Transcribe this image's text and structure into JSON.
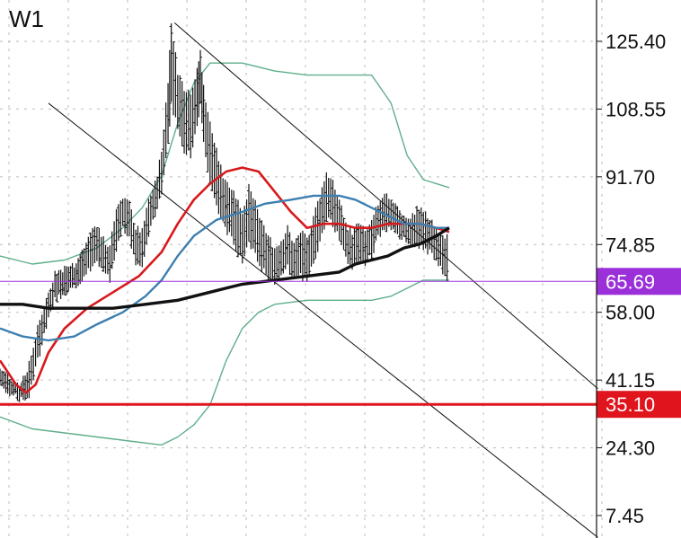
{
  "timeframe": "W1",
  "chart_data": {
    "type": "ohlc",
    "grid": true,
    "ylim": [
      0,
      132
    ],
    "xlim": [
      0,
      150
    ],
    "y_ticks": [
      "125.40",
      "108.55",
      "91.70",
      "74.85",
      "58.00",
      "41.15",
      "24.30",
      "7.45"
    ],
    "y_tick_values": [
      125.4,
      108.55,
      91.7,
      74.85,
      58.0,
      41.15,
      24.3,
      7.45
    ],
    "price_lines": [
      {
        "label": "65.69",
        "value": 65.69,
        "color": "#9b30d9",
        "width": 1
      },
      {
        "label": "35.10",
        "value": 35.1,
        "color": "#e0141c",
        "width": 3
      }
    ],
    "colors": {
      "bars": "#111111",
      "grid": "#bdbdbd",
      "channel": "#111111",
      "ma_red": "#d7191c",
      "ma_blue": "#3c7fb0",
      "ma_black": "#111111",
      "bands": "#5fae8a"
    },
    "series": [
      {
        "type": "ohlc_envelope",
        "points": [
          [
            0,
            44,
            40
          ],
          [
            3,
            42,
            38
          ],
          [
            6,
            40,
            36
          ],
          [
            9,
            45,
            37
          ],
          [
            11,
            52,
            44
          ],
          [
            13,
            58,
            50
          ],
          [
            15,
            63,
            56
          ],
          [
            17,
            68,
            61
          ],
          [
            20,
            69,
            63
          ],
          [
            23,
            70,
            64
          ],
          [
            26,
            74,
            66
          ],
          [
            28,
            78,
            69
          ],
          [
            30,
            80,
            71
          ],
          [
            32,
            76,
            68
          ],
          [
            34,
            74,
            66
          ],
          [
            36,
            84,
            74
          ],
          [
            38,
            87,
            79
          ],
          [
            40,
            85,
            76
          ],
          [
            42,
            79,
            70
          ],
          [
            44,
            78,
            69
          ],
          [
            46,
            86,
            77
          ],
          [
            48,
            90,
            82
          ],
          [
            50,
            98,
            88
          ],
          [
            52,
            116,
            100
          ],
          [
            53,
            130,
            110
          ],
          [
            55,
            118,
            104
          ],
          [
            57,
            114,
            98
          ],
          [
            59,
            113,
            97
          ],
          [
            61,
            118,
            104
          ],
          [
            62,
            123,
            110
          ],
          [
            63,
            114,
            100
          ],
          [
            65,
            105,
            90
          ],
          [
            67,
            98,
            84
          ],
          [
            69,
            92,
            80
          ],
          [
            71,
            90,
            77
          ],
          [
            73,
            87,
            74
          ],
          [
            75,
            83,
            70
          ],
          [
            77,
            89,
            76
          ],
          [
            79,
            85,
            72
          ],
          [
            81,
            80,
            69
          ],
          [
            83,
            77,
            66
          ],
          [
            85,
            74,
            65
          ],
          [
            87,
            76,
            68
          ],
          [
            89,
            79,
            69
          ],
          [
            91,
            75,
            66
          ],
          [
            93,
            78,
            67
          ],
          [
            95,
            76,
            66
          ],
          [
            97,
            82,
            70
          ],
          [
            99,
            87,
            76
          ],
          [
            101,
            93,
            81
          ],
          [
            103,
            90,
            80
          ],
          [
            105,
            86,
            76
          ],
          [
            107,
            80,
            71
          ],
          [
            109,
            78,
            69
          ],
          [
            111,
            80,
            71
          ],
          [
            113,
            78,
            70
          ],
          [
            115,
            80,
            72
          ],
          [
            117,
            85,
            77
          ],
          [
            119,
            88,
            79
          ],
          [
            121,
            86,
            78
          ],
          [
            123,
            84,
            77
          ],
          [
            125,
            82,
            76
          ],
          [
            127,
            81,
            74
          ],
          [
            129,
            84,
            75
          ],
          [
            131,
            83,
            74
          ],
          [
            133,
            81,
            73
          ],
          [
            135,
            79,
            70
          ],
          [
            137,
            78,
            68
          ],
          [
            139,
            76,
            66
          ]
        ]
      },
      {
        "name": "",
        "type": "line",
        "role": "ma_red",
        "points": [
          [
            0,
            46
          ],
          [
            5,
            40
          ],
          [
            8,
            38
          ],
          [
            11,
            40
          ],
          [
            15,
            48
          ],
          [
            20,
            54
          ],
          [
            27,
            59
          ],
          [
            35,
            63
          ],
          [
            43,
            67
          ],
          [
            50,
            73
          ],
          [
            55,
            80
          ],
          [
            60,
            86
          ],
          [
            65,
            90
          ],
          [
            70,
            93
          ],
          [
            75,
            94
          ],
          [
            80,
            93
          ],
          [
            85,
            88
          ],
          [
            90,
            83
          ],
          [
            95,
            79
          ],
          [
            100,
            80
          ],
          [
            105,
            80
          ],
          [
            110,
            79
          ],
          [
            115,
            79
          ],
          [
            120,
            80
          ],
          [
            125,
            80
          ],
          [
            130,
            80
          ],
          [
            135,
            79
          ],
          [
            139,
            78
          ]
        ]
      },
      {
        "name": "",
        "type": "line",
        "role": "ma_blue",
        "points": [
          [
            0,
            54
          ],
          [
            7,
            52
          ],
          [
            15,
            51
          ],
          [
            23,
            52
          ],
          [
            30,
            55
          ],
          [
            38,
            58
          ],
          [
            45,
            62
          ],
          [
            50,
            66
          ],
          [
            55,
            72
          ],
          [
            60,
            77
          ],
          [
            67,
            81
          ],
          [
            75,
            83
          ],
          [
            82,
            85
          ],
          [
            90,
            86
          ],
          [
            97,
            87
          ],
          [
            105,
            87
          ],
          [
            110,
            86
          ],
          [
            115,
            84
          ],
          [
            120,
            82
          ],
          [
            125,
            80
          ],
          [
            130,
            80
          ],
          [
            135,
            79
          ],
          [
            139,
            79
          ]
        ]
      },
      {
        "name": "",
        "type": "line",
        "role": "ma_black",
        "points": [
          [
            0,
            60
          ],
          [
            7,
            60
          ],
          [
            15,
            59
          ],
          [
            25,
            59
          ],
          [
            35,
            59
          ],
          [
            45,
            60
          ],
          [
            55,
            61
          ],
          [
            65,
            63
          ],
          [
            75,
            65
          ],
          [
            85,
            66
          ],
          [
            95,
            67
          ],
          [
            105,
            68
          ],
          [
            110,
            70
          ],
          [
            115,
            71
          ],
          [
            120,
            72
          ],
          [
            125,
            74
          ],
          [
            130,
            75
          ],
          [
            135,
            77
          ],
          [
            139,
            79
          ]
        ]
      },
      {
        "name": "",
        "type": "line",
        "role": "band_upper",
        "points": [
          [
            0,
            72
          ],
          [
            10,
            70
          ],
          [
            20,
            71
          ],
          [
            30,
            74
          ],
          [
            38,
            79
          ],
          [
            44,
            84
          ],
          [
            50,
            92
          ],
          [
            55,
            105
          ],
          [
            60,
            115
          ],
          [
            65,
            120
          ],
          [
            75,
            120
          ],
          [
            85,
            118
          ],
          [
            95,
            117
          ],
          [
            105,
            117
          ],
          [
            115,
            117
          ],
          [
            121,
            110
          ],
          [
            126,
            97
          ],
          [
            131,
            91
          ],
          [
            139,
            89
          ]
        ]
      },
      {
        "name": "",
        "type": "line",
        "role": "band_lower",
        "points": [
          [
            0,
            32
          ],
          [
            10,
            29
          ],
          [
            20,
            28
          ],
          [
            30,
            27
          ],
          [
            40,
            26
          ],
          [
            50,
            25
          ],
          [
            55,
            27
          ],
          [
            60,
            30
          ],
          [
            65,
            35
          ],
          [
            70,
            46
          ],
          [
            75,
            54
          ],
          [
            80,
            58
          ],
          [
            85,
            60
          ],
          [
            95,
            61
          ],
          [
            105,
            61
          ],
          [
            115,
            61
          ],
          [
            121,
            62
          ],
          [
            126,
            64
          ],
          [
            131,
            66
          ],
          [
            139,
            66
          ]
        ]
      }
    ],
    "channel_lines": [
      {
        "from": [
          54,
          130
        ],
        "to": [
          185,
          39
        ]
      },
      {
        "from": [
          15,
          110
        ],
        "to": [
          185,
          2
        ]
      }
    ]
  }
}
